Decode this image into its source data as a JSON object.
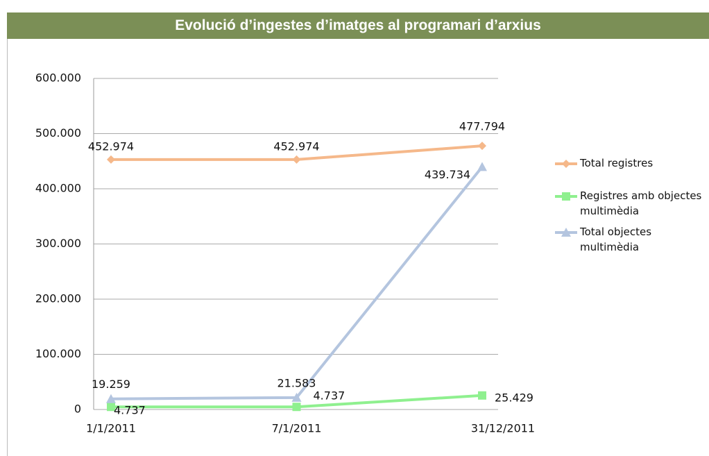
{
  "chart_data": {
    "type": "line",
    "title": "Evolució d’ingestes d’imatges al programari d’arxius",
    "categories": [
      "1/1/2011",
      "7/1/2011",
      "31/12/2011"
    ],
    "series": [
      {
        "name": "Total registres",
        "color": "#f5b88a",
        "marker": "diamond",
        "values": [
          452974,
          452974,
          477794
        ],
        "value_labels": [
          "452.974",
          "452.974",
          "477.794"
        ]
      },
      {
        "name": "Registres amb objectes multimèdia",
        "color": "#8ff08f",
        "marker": "square",
        "values": [
          4737,
          4737,
          25429
        ],
        "value_labels": [
          "4.737",
          "4.737",
          "25.429"
        ]
      },
      {
        "name": "Total objectes multimèdia",
        "color": "#b4c5df",
        "marker": "triangle",
        "values": [
          19259,
          21583,
          439734
        ],
        "value_labels": [
          "19.259",
          "21.583",
          "439.734"
        ]
      }
    ],
    "ylim": [
      0,
      600000
    ],
    "yticks": [
      0,
      {
        "value": 100000,
        "label": "100.000"
      },
      {
        "value": 200000,
        "label": "200.000"
      },
      {
        "value": 300000,
        "label": "300.000"
      },
      {
        "value": 400000,
        "label": "400.000"
      },
      {
        "value": 500000,
        "label": "500.000"
      },
      {
        "value": 600000,
        "label": "600.000"
      }
    ],
    "grid": true
  }
}
